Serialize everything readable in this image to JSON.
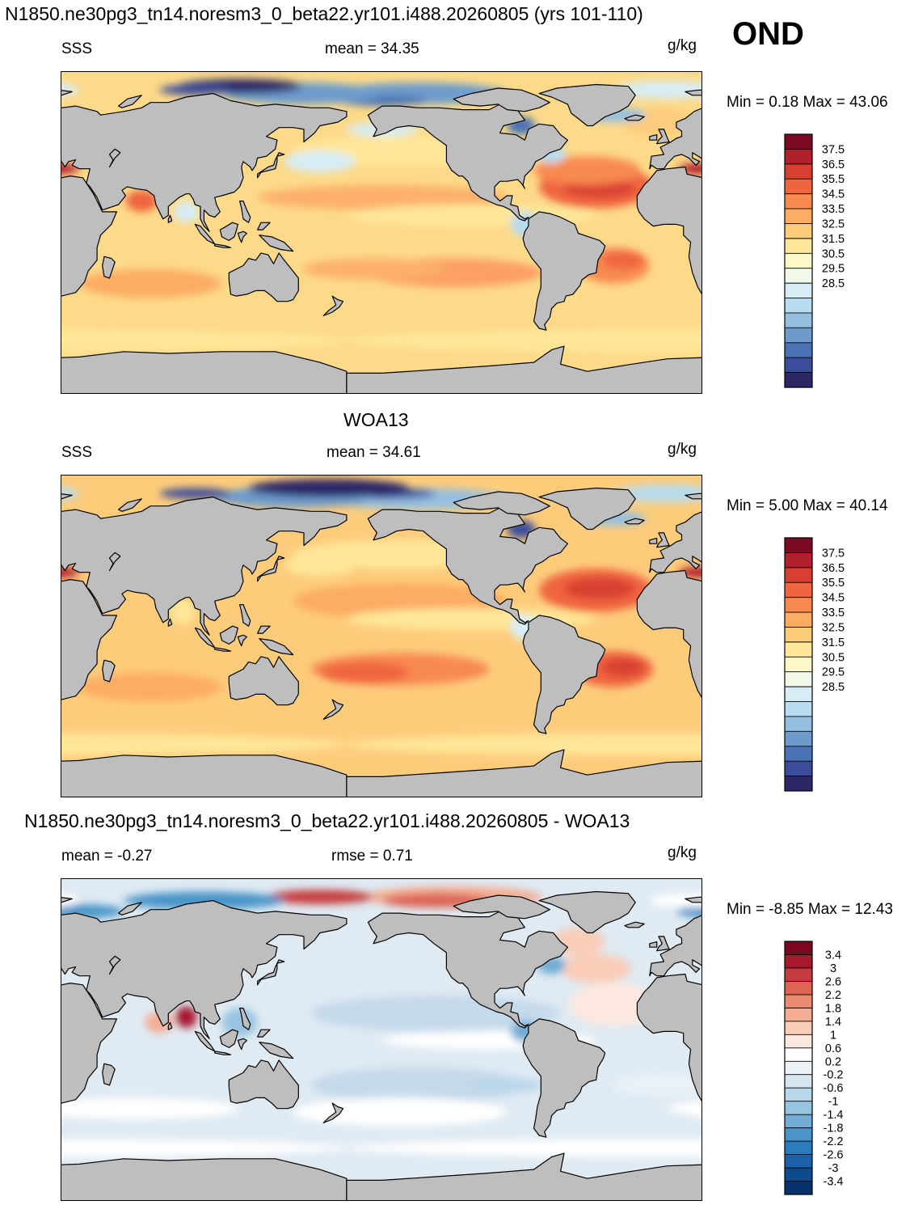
{
  "header": {
    "title": "N1850.ne30pg3_tn14.noresm3_0_beta22.yr101.i488.20260805 (yrs 101-110)",
    "season": "OND"
  },
  "panels": [
    {
      "id": "model",
      "variable": "SSS",
      "stat_text": "mean =  34.35",
      "units": "g/kg",
      "minmax": "Min =   0.18 Max =  43.06",
      "colorbar": {
        "colors": [
          "#2c2566",
          "#3b4d9a",
          "#4a72b4",
          "#6d9bcc",
          "#95bfe0",
          "#b7dcef",
          "#d6edf6",
          "#f1f9e9",
          "#fdf8c7",
          "#fee79a",
          "#fdcc7b",
          "#fcac63",
          "#f88a4f",
          "#ef6540",
          "#d93f31",
          "#b01f2a",
          "#7c0a25"
        ],
        "ticks": [
          "37.5",
          "36.5",
          "35.5",
          "34.5",
          "33.5",
          "32.5",
          "31.5",
          "30.5",
          "29.5",
          "28.5"
        ]
      }
    },
    {
      "id": "obs",
      "title": "WOA13",
      "variable": "SSS",
      "stat_text": "mean =  34.61",
      "units": "g/kg",
      "minmax": "Min =   5.00 Max =  40.14",
      "colorbar": {
        "colors": [
          "#2c2566",
          "#3b4d9a",
          "#4a72b4",
          "#6d9bcc",
          "#95bfe0",
          "#b7dcef",
          "#d6edf6",
          "#f1f9e9",
          "#fdf8c7",
          "#fee79a",
          "#fdcc7b",
          "#fcac63",
          "#f88a4f",
          "#ef6540",
          "#d93f31",
          "#b01f2a",
          "#7c0a25"
        ],
        "ticks": [
          "37.5",
          "36.5",
          "35.5",
          "34.5",
          "33.5",
          "32.5",
          "31.5",
          "30.5",
          "29.5",
          "28.5"
        ]
      }
    },
    {
      "id": "diff",
      "title": "N1850.ne30pg3_tn14.noresm3_0_beta22.yr101.i488.20260805 - WOA13",
      "stat_text": "mean =  -0.27",
      "stat2_text": "rmse =   0.71",
      "units": "g/kg",
      "minmax": "Min =  -8.85 Max =  12.43",
      "colorbar": {
        "colors": [
          "#05306b",
          "#0d4a8c",
          "#1c62a8",
          "#2c7bbb",
          "#4a94c8",
          "#72acd5",
          "#97c4e1",
          "#b9d7ea",
          "#d5e6f1",
          "#eaf2f8",
          "#ffffff",
          "#fde9df",
          "#f9cdb8",
          "#f3ad92",
          "#e98a72",
          "#dc6454",
          "#c63c3e",
          "#a8192d",
          "#7a0622"
        ],
        "ticks": [
          "3.4",
          "3",
          "2.6",
          "2.2",
          "1.8",
          "1.4",
          "1",
          "0.6",
          "0.2",
          "-0.2",
          "-0.6",
          "-1",
          "-1.4",
          "-1.8",
          "-2.2",
          "-2.6",
          "-3",
          "-3.4"
        ]
      }
    }
  ]
}
